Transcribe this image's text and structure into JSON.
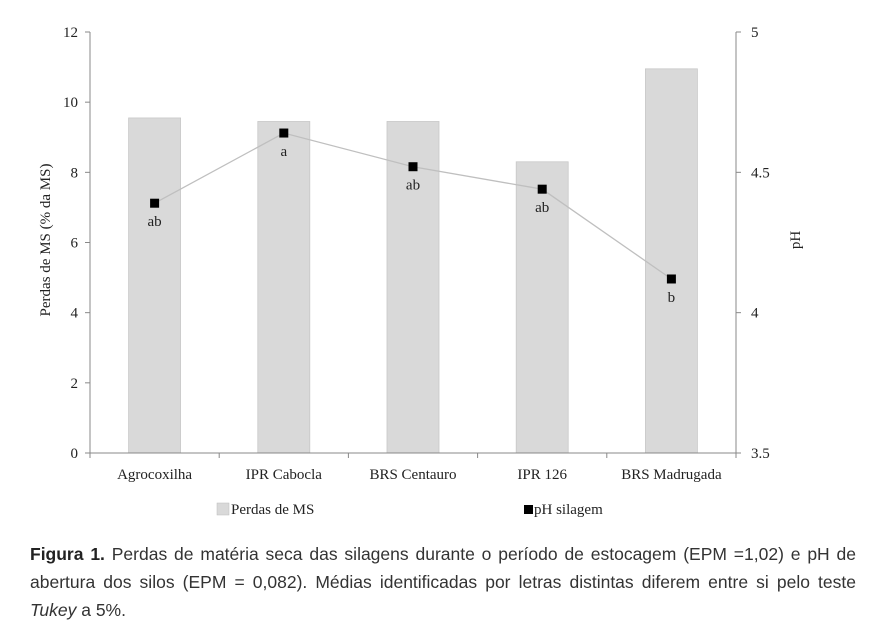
{
  "chart_data": {
    "type": "bar",
    "categories": [
      "Agrocoxilha",
      "IPR Cabocla",
      "BRS Centauro",
      "IPR 126",
      "BRS Madrugada"
    ],
    "series": [
      {
        "name": "Perdas de MS",
        "type": "bar",
        "axis": "left",
        "values": [
          9.55,
          9.45,
          9.45,
          8.3,
          10.95
        ],
        "color": "#d9d9d9"
      },
      {
        "name": "pH silagem",
        "type": "line",
        "axis": "right",
        "values": [
          4.39,
          4.64,
          4.52,
          4.44,
          4.12
        ],
        "color": "#000000",
        "line_color": "#bfbfbf",
        "point_labels": [
          "ab",
          "a",
          "ab",
          "ab",
          "b"
        ]
      }
    ],
    "ylabel": "Perdas de MS (% da MS)",
    "y2label": "pH",
    "ylim": [
      0,
      12
    ],
    "y2lim": [
      3.5,
      5
    ],
    "yticks": [
      "0",
      "2",
      "4",
      "6",
      "8",
      "10",
      "12"
    ],
    "y2ticks": [
      "3.5",
      "4",
      "4.5",
      "5"
    ],
    "legend_position": "bottom",
    "grid": false
  },
  "caption": {
    "label": "Figura 1.",
    "text_before_italic": " Perdas de matéria seca das silagens durante o período de estocagem (EPM =1,02) e pH de abertura dos silos (EPM = 0,082). Médias identificadas por letras distintas diferem entre si pelo teste ",
    "italic": "Tukey",
    "text_after_italic": " a 5%."
  }
}
